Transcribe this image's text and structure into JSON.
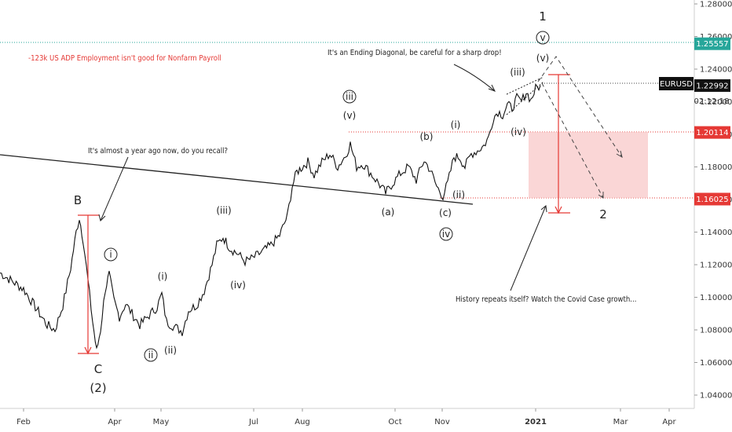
{
  "chart_data": {
    "type": "line",
    "symbol": "EURUSD",
    "timer": "02:12:18",
    "y_ticks": [
      "1.28000",
      "1.26000",
      "1.24000",
      "1.22000",
      "1.20000",
      "1.18000",
      "1.16000",
      "1.14000",
      "1.12000",
      "1.10000",
      "1.08000",
      "1.06000",
      "1.04000"
    ],
    "ylim": [
      1.024,
      1.284
    ],
    "x_ticks": [
      "Feb",
      "Apr",
      "May",
      "Jul",
      "Aug",
      "Oct",
      "Nov",
      "2021",
      "Mar",
      "Apr"
    ],
    "price_tags": [
      {
        "value": 1.25557,
        "label": "1.25557",
        "color": "#26a69a"
      },
      {
        "value": 1.22992,
        "label": "1.22992",
        "color": "#111111"
      },
      {
        "value": 1.20114,
        "label": "1.20114",
        "color": "#e53935"
      },
      {
        "value": 1.16025,
        "label": "1.16025",
        "color": "#e53935"
      }
    ],
    "price_series": [
      [
        0,
        1.115
      ],
      [
        15,
        1.11
      ],
      [
        30,
        1.105
      ],
      [
        45,
        1.094
      ],
      [
        60,
        1.083
      ],
      [
        70,
        1.08
      ],
      [
        80,
        1.095
      ],
      [
        90,
        1.118
      ],
      [
        97,
        1.14
      ],
      [
        101,
        1.149
      ],
      [
        106,
        1.135
      ],
      [
        112,
        1.11
      ],
      [
        118,
        1.085
      ],
      [
        123,
        1.067
      ],
      [
        128,
        1.08
      ],
      [
        134,
        1.105
      ],
      [
        139,
        1.114
      ],
      [
        145,
        1.098
      ],
      [
        152,
        1.088
      ],
      [
        160,
        1.096
      ],
      [
        168,
        1.09
      ],
      [
        178,
        1.083
      ],
      [
        188,
        1.088
      ],
      [
        200,
        1.094
      ],
      [
        206,
        1.102
      ],
      [
        212,
        1.085
      ],
      [
        222,
        1.082
      ],
      [
        232,
        1.079
      ],
      [
        240,
        1.092
      ],
      [
        250,
        1.095
      ],
      [
        260,
        1.104
      ],
      [
        270,
        1.12
      ],
      [
        276,
        1.132
      ],
      [
        284,
        1.137
      ],
      [
        293,
        1.13
      ],
      [
        302,
        1.127
      ],
      [
        312,
        1.122
      ],
      [
        322,
        1.124
      ],
      [
        334,
        1.128
      ],
      [
        345,
        1.132
      ],
      [
        356,
        1.138
      ],
      [
        366,
        1.15
      ],
      [
        372,
        1.168
      ],
      [
        378,
        1.177
      ],
      [
        385,
        1.18
      ],
      [
        392,
        1.183
      ],
      [
        400,
        1.175
      ],
      [
        410,
        1.183
      ],
      [
        420,
        1.188
      ],
      [
        430,
        1.18
      ],
      [
        440,
        1.187
      ],
      [
        446,
        1.194
      ],
      [
        454,
        1.18
      ],
      [
        462,
        1.182
      ],
      [
        472,
        1.176
      ],
      [
        482,
        1.17
      ],
      [
        491,
        1.164
      ],
      [
        500,
        1.17
      ],
      [
        510,
        1.176
      ],
      [
        520,
        1.18
      ],
      [
        530,
        1.172
      ],
      [
        540,
        1.184
      ],
      [
        548,
        1.178
      ],
      [
        556,
        1.168
      ],
      [
        564,
        1.162
      ],
      [
        570,
        1.17
      ],
      [
        578,
        1.186
      ],
      [
        585,
        1.186
      ],
      [
        592,
        1.18
      ],
      [
        600,
        1.188
      ],
      [
        608,
        1.19
      ],
      [
        616,
        1.193
      ],
      [
        622,
        1.198
      ],
      [
        628,
        1.21
      ],
      [
        634,
        1.214
      ],
      [
        640,
        1.212
      ],
      [
        646,
        1.218
      ],
      [
        652,
        1.216
      ],
      [
        658,
        1.222
      ],
      [
        664,
        1.22
      ],
      [
        670,
        1.226
      ],
      [
        676,
        1.221
      ],
      [
        682,
        1.228
      ],
      [
        688,
        1.23
      ]
    ],
    "annotations": [
      {
        "text": "-123k US ADP Employment isn't good for Nonfarm Payroll",
        "color": "#e53935"
      },
      {
        "text": "It's an Ending Diagonal, be careful for a sharp drop!"
      },
      {
        "text": "It's almost a year ago now, do you recall?"
      },
      {
        "text": "History repeats itself? Watch the Covid Case growth..."
      }
    ],
    "wave_labels": {
      "one": "1",
      "v_circle": "v",
      "v_paren_top": "(v)",
      "iii_paren_top": "(iii)",
      "i_paren_nov": "(i)",
      "iv_paren_dec": "(iv)",
      "ii_paren_nov": "(ii)",
      "iii_circle": "iii",
      "v_paren_aug": "(v)",
      "b_paren": "(b)",
      "a_paren": "(a)",
      "c_paren": "(c)",
      "iv_circle": "iv",
      "two": "2",
      "B": "B",
      "i_circle": "i",
      "iii_paren_may": "(iii)",
      "iv_paren": "(iv)",
      "i_paren_apr": "(i)",
      "ii_circle": "ii",
      "ii_paren_apr": "(ii)",
      "C": "C",
      "two_paren": "(2)"
    }
  }
}
